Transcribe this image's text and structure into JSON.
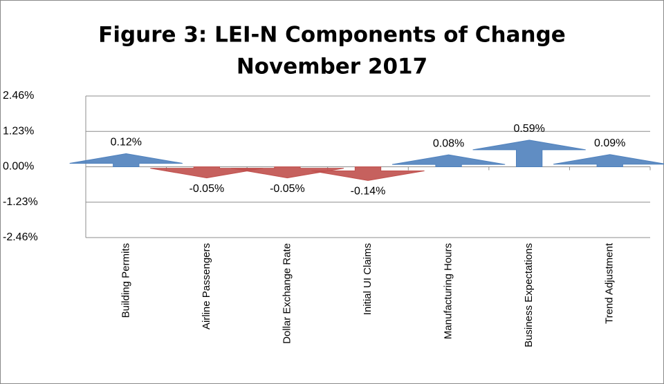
{
  "chart_data": {
    "type": "bar",
    "title": [
      "Figure 3: LEI-N Components of Change",
      "November 2017"
    ],
    "categories": [
      "Building Permits",
      "Airline Passengers",
      "Dollar Exchange Rate",
      "Initial UI Claims",
      "Manufacturing Hours",
      "Business Expectations",
      "Trend Adjustment"
    ],
    "values": [
      0.12,
      -0.05,
      -0.05,
      -0.14,
      0.08,
      0.59,
      0.09
    ],
    "value_labels": [
      "0.12%",
      "-0.05%",
      "-0.05%",
      "-0.14%",
      "0.08%",
      "0.59%",
      "0.09%"
    ],
    "colors": {
      "positive": "#4f81bd",
      "negative": "#c0504d"
    },
    "ylim": [
      -2.46,
      2.46
    ],
    "yticks": [
      {
        "value": -2.46,
        "label": "-2.46%"
      },
      {
        "value": -1.23,
        "label": "-1.23%"
      },
      {
        "value": 0,
        "label": "0.00%"
      },
      {
        "value": 1.23,
        "label": "1.23%"
      },
      {
        "value": 2.46,
        "label": "2.46%"
      }
    ],
    "grid": true
  }
}
